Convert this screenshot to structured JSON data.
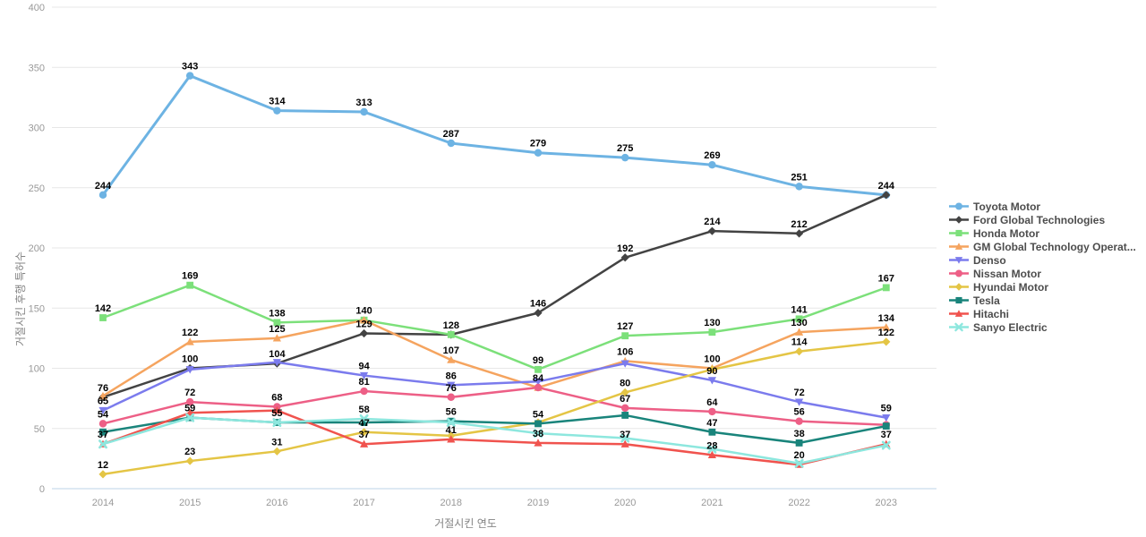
{
  "y_axis": {
    "title": "거절시킨 후행 특허수",
    "ticks": [
      0,
      50,
      100,
      150,
      200,
      250,
      300,
      350,
      400
    ]
  },
  "x_axis": {
    "title": "거절시킨 연도"
  },
  "chart_data": {
    "type": "line",
    "categories": [
      "2014",
      "2015",
      "2016",
      "2017",
      "2018",
      "2019",
      "2020",
      "2021",
      "2022",
      "2023"
    ],
    "title": "",
    "xlabel": "거절시킨 연도",
    "ylabel": "거절시킨 후행 특허수",
    "ylim": [
      0,
      400
    ],
    "grid": true,
    "legend_position": "right",
    "series": [
      {
        "name": "Toyota Motor",
        "color": "#6db3e3",
        "marker": "circle",
        "lw": 3,
        "values": [
          244,
          343,
          314,
          313,
          287,
          279,
          275,
          269,
          251,
          244
        ],
        "hidden_labels": [
          9
        ]
      },
      {
        "name": "Ford Global Technologies",
        "color": "#434343",
        "marker": "diamond",
        "lw": 2.5,
        "values": [
          76,
          100,
          104,
          129,
          128,
          146,
          192,
          214,
          212,
          244
        ],
        "hidden_labels": []
      },
      {
        "name": "Honda Motor",
        "color": "#7ce07a",
        "marker": "square",
        "lw": 2.5,
        "values": [
          142,
          169,
          138,
          140,
          128,
          99,
          127,
          130,
          141,
          167
        ],
        "hidden_labels": [
          3,
          4
        ]
      },
      {
        "name": "GM Global Technology Operat...",
        "color": "#f5a45f",
        "marker": "triangle",
        "lw": 2.5,
        "values": [
          77,
          122,
          125,
          140,
          107,
          84,
          106,
          100,
          130,
          134
        ],
        "hidden_labels": [
          0
        ]
      },
      {
        "name": "Denso",
        "color": "#7b7bed",
        "marker": "triangle-down",
        "lw": 2.5,
        "values": [
          65,
          99,
          105,
          94,
          86,
          89,
          104,
          90,
          72,
          59
        ],
        "hidden_labels": [
          1,
          2,
          5,
          6
        ]
      },
      {
        "name": "Nissan Motor",
        "color": "#ed5f86",
        "marker": "circle",
        "lw": 2.5,
        "values": [
          54,
          72,
          68,
          81,
          76,
          84,
          67,
          64,
          56,
          53
        ],
        "hidden_labels": [
          5,
          9
        ]
      },
      {
        "name": "Hyundai Motor",
        "color": "#e4c545",
        "marker": "diamond",
        "lw": 2.5,
        "values": [
          12,
          23,
          31,
          47,
          44,
          55,
          80,
          99,
          114,
          122
        ],
        "hidden_labels": [
          4,
          5,
          7
        ]
      },
      {
        "name": "Tesla",
        "color": "#19847b",
        "marker": "square",
        "lw": 2.5,
        "values": [
          47,
          59,
          55,
          55,
          56,
          54,
          61,
          47,
          38,
          52
        ],
        "hidden_labels": [
          0,
          3,
          6,
          9
        ]
      },
      {
        "name": "Hitachi",
        "color": "#f0534e",
        "marker": "triangle",
        "lw": 2.5,
        "values": [
          37,
          63,
          65,
          37,
          41,
          38,
          37,
          28,
          20,
          37
        ],
        "hidden_labels": [
          1,
          2
        ]
      },
      {
        "name": "Sanyo Electric",
        "color": "#8de7de",
        "marker": "x",
        "lw": 2.5,
        "values": [
          37,
          59,
          55,
          58,
          55,
          46,
          42,
          33,
          21,
          36
        ],
        "hidden_labels": [
          0,
          1,
          2,
          4,
          5,
          6,
          7,
          8,
          9
        ]
      }
    ]
  },
  "style": {
    "grid_color": "#e7e7e7",
    "axis_line_color": "#bdd3e7",
    "tick_color": "#999999",
    "label_color": "#000000",
    "legend_text_color": "#4d4d4d"
  }
}
